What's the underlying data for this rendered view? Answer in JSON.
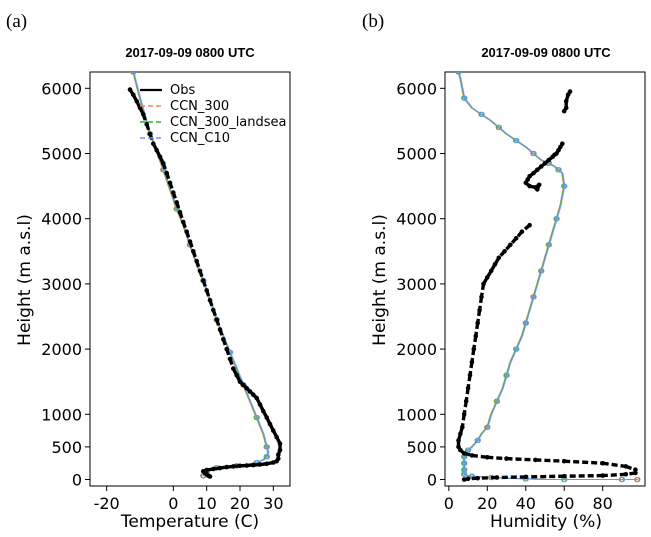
{
  "chart_data": [
    {
      "type": "line",
      "panel_label": "(a)",
      "title": "2017-09-09 0800 UTC",
      "xlabel": "Temperature (C)",
      "ylabel": "Height (m a.s.l)",
      "xlim": [
        -25,
        35
      ],
      "ylim": [
        -100,
        6250
      ],
      "xticks": [
        -20,
        0,
        10,
        20,
        30
      ],
      "yticks": [
        0,
        500,
        1000,
        2000,
        3000,
        4000,
        5000,
        6000
      ],
      "grid": false,
      "legend_position": "top-right",
      "legend": [
        {
          "label": "Obs",
          "color": "#000000",
          "style": "solid"
        },
        {
          "label": "CCN_300",
          "color": "#f08070",
          "style": "dashed"
        },
        {
          "label": "CCN_300_landsea",
          "color": "#22bb22",
          "style": "dashed"
        },
        {
          "label": "CCN_C10",
          "color": "#6699ff",
          "style": "dashed"
        }
      ],
      "series": [
        {
          "name": "Obs",
          "color": "#000000",
          "x": [
            -13,
            -12,
            -11,
            -10,
            -9,
            -8,
            -7,
            -6,
            -5,
            -4,
            -3,
            -2,
            -1,
            0,
            1,
            2,
            3,
            4,
            5,
            6,
            7,
            8,
            9,
            10,
            11,
            12,
            13,
            14,
            15,
            16,
            17,
            18,
            19,
            20,
            21,
            22,
            23,
            24,
            25,
            26,
            27,
            28,
            29,
            30,
            31,
            32,
            32,
            31.5,
            31.5,
            31,
            30,
            28,
            26,
            24,
            22,
            20,
            18,
            16,
            14,
            12,
            10,
            9,
            9.5,
            10,
            10.5,
            11
          ],
          "y": [
            5980,
            5900,
            5800,
            5700,
            5600,
            5450,
            5300,
            5150,
            5050,
            4950,
            4850,
            4700,
            4550,
            4400,
            4250,
            4100,
            3950,
            3800,
            3650,
            3500,
            3350,
            3200,
            3050,
            2900,
            2750,
            2600,
            2450,
            2300,
            2150,
            2000,
            1850,
            1700,
            1600,
            1500,
            1450,
            1400,
            1350,
            1300,
            1250,
            1150,
            1050,
            950,
            850,
            750,
            650,
            550,
            450,
            380,
            320,
            280,
            260,
            240,
            230,
            220,
            215,
            210,
            200,
            190,
            175,
            160,
            145,
            125,
            100,
            80,
            60,
            45
          ]
        },
        {
          "name": "CCN_300",
          "color": "#f08070",
          "x": [
            -12,
            -10,
            -7,
            -5,
            -3,
            -1,
            1,
            3,
            5,
            7,
            9,
            11,
            13,
            15,
            17,
            19,
            21,
            23,
            25,
            27,
            28,
            28.5,
            28,
            27,
            25,
            22,
            19,
            16,
            13,
            11,
            10,
            9.5,
            9
          ],
          "y": [
            6250,
            5850,
            5300,
            5050,
            4750,
            4450,
            4150,
            3900,
            3600,
            3300,
            3050,
            2750,
            2450,
            2200,
            1950,
            1700,
            1450,
            1200,
            950,
            700,
            500,
            420,
            350,
            300,
            260,
            230,
            210,
            195,
            180,
            160,
            120,
            90,
            60
          ]
        },
        {
          "name": "CCN_300_landsea",
          "color": "#22bb22",
          "x": [
            -12,
            -10,
            -7,
            -5,
            -3,
            -1,
            1,
            3,
            5,
            7,
            9,
            11,
            13,
            15,
            17,
            19,
            21,
            23,
            25,
            27,
            28,
            28.5,
            28,
            27,
            25,
            22,
            19,
            16,
            13,
            11,
            10,
            9.5,
            9
          ],
          "y": [
            6250,
            5850,
            5300,
            5050,
            4750,
            4450,
            4150,
            3900,
            3600,
            3300,
            3050,
            2750,
            2450,
            2200,
            1950,
            1700,
            1450,
            1200,
            950,
            700,
            500,
            420,
            350,
            300,
            260,
            230,
            210,
            195,
            180,
            160,
            120,
            90,
            60
          ]
        },
        {
          "name": "CCN_C10",
          "color": "#6699ff",
          "x": [
            -12,
            -10,
            -7,
            -5,
            -3,
            -1,
            1,
            3,
            5,
            7,
            9,
            11,
            13,
            15,
            17,
            19,
            21,
            23,
            25,
            27,
            28,
            28.5,
            28,
            27,
            25,
            22,
            19,
            16,
            13,
            11,
            10,
            9.5,
            9
          ],
          "y": [
            6250,
            5850,
            5300,
            5050,
            4750,
            4450,
            4150,
            3900,
            3600,
            3300,
            3050,
            2750,
            2450,
            2200,
            1950,
            1700,
            1450,
            1200,
            950,
            700,
            500,
            420,
            350,
            300,
            260,
            230,
            210,
            195,
            180,
            160,
            120,
            90,
            60
          ]
        }
      ]
    },
    {
      "type": "line",
      "panel_label": "(b)",
      "title": "2017-09-09 0800 UTC",
      "xlabel": "Humidity (%)",
      "ylabel": "Height (m a.s.l)",
      "xlim": [
        -2,
        102
      ],
      "ylim": [
        -100,
        6250
      ],
      "xticks": [
        0,
        20,
        40,
        60,
        80
      ],
      "yticks": [
        0,
        500,
        1000,
        2000,
        3000,
        4000,
        5000,
        6000
      ],
      "grid": false,
      "series": [
        {
          "name": "Obs",
          "color": "#000000",
          "x": [
            63,
            62,
            61,
            61,
            60,
            59,
            58,
            57,
            56,
            55,
            54,
            52,
            50,
            48,
            46,
            44,
            42,
            41,
            40,
            42,
            45,
            47,
            46,
            42,
            38,
            35,
            32,
            29,
            26,
            24,
            22,
            20,
            18,
            17,
            16,
            15,
            14,
            13,
            12,
            11,
            10,
            9,
            8,
            7,
            6,
            5,
            5,
            6,
            8,
            12,
            20,
            30,
            45,
            60,
            80,
            92,
            97,
            97,
            92,
            80,
            60,
            40,
            25,
            15,
            10,
            8
          ],
          "y": [
            5950,
            5900,
            5800,
            5700,
            5650,
            5150,
            5100,
            5050,
            5000,
            4980,
            4950,
            4900,
            4850,
            4800,
            4750,
            4700,
            4650,
            4600,
            4550,
            4500,
            4480,
            4520,
            4450,
            3900,
            3800,
            3700,
            3600,
            3500,
            3400,
            3300,
            3200,
            3100,
            3000,
            2800,
            2600,
            2400,
            2200,
            2000,
            1800,
            1600,
            1400,
            1200,
            1000,
            800,
            700,
            600,
            500,
            450,
            400,
            370,
            340,
            320,
            300,
            280,
            250,
            200,
            150,
            100,
            80,
            60,
            50,
            40,
            30,
            20,
            10,
            0
          ]
        },
        {
          "name": "CCN_300",
          "color": "#f08070",
          "x": [
            5,
            6,
            8,
            12,
            17,
            22,
            26,
            30,
            35,
            40,
            44,
            48,
            52,
            55,
            57,
            59,
            60,
            58,
            56,
            54,
            52,
            50,
            48,
            46,
            44,
            42,
            40,
            38,
            35,
            32,
            30,
            28,
            25,
            22,
            20,
            17,
            15,
            12,
            10,
            9,
            8,
            8,
            8,
            8,
            8,
            8,
            8,
            9,
            12,
            17,
            22,
            30,
            40,
            50,
            60,
            75,
            90,
            97,
            98
          ],
          "y": [
            6250,
            6150,
            5850,
            5700,
            5600,
            5500,
            5400,
            5300,
            5200,
            5100,
            5000,
            4900,
            4850,
            4800,
            4750,
            4700,
            4500,
            4200,
            4000,
            3800,
            3600,
            3400,
            3200,
            3000,
            2800,
            2600,
            2400,
            2200,
            2000,
            1800,
            1600,
            1400,
            1200,
            1000,
            800,
            700,
            600,
            500,
            450,
            400,
            350,
            300,
            250,
            200,
            150,
            100,
            80,
            60,
            50,
            40,
            30,
            20,
            10,
            0,
            0,
            0,
            0,
            0,
            0
          ]
        },
        {
          "name": "CCN_300_landsea",
          "color": "#22bb22",
          "x": [
            5,
            6,
            8,
            12,
            17,
            22,
            26,
            30,
            35,
            40,
            44,
            48,
            52,
            55,
            57,
            59,
            60,
            58,
            56,
            54,
            52,
            50,
            48,
            46,
            44,
            42,
            40,
            38,
            35,
            32,
            30,
            28,
            25,
            22,
            20,
            17,
            15,
            12,
            10,
            9,
            8,
            8,
            8,
            8,
            8,
            8,
            8,
            9,
            12,
            17,
            22,
            30,
            40,
            50,
            60,
            75,
            90,
            97,
            98
          ],
          "y": [
            6250,
            6150,
            5850,
            5700,
            5600,
            5500,
            5400,
            5300,
            5200,
            5100,
            5000,
            4900,
            4850,
            4800,
            4750,
            4700,
            4500,
            4200,
            4000,
            3800,
            3600,
            3400,
            3200,
            3000,
            2800,
            2600,
            2400,
            2200,
            2000,
            1800,
            1600,
            1400,
            1200,
            1000,
            800,
            700,
            600,
            500,
            450,
            400,
            350,
            300,
            250,
            200,
            150,
            100,
            80,
            60,
            50,
            40,
            30,
            20,
            10,
            0,
            0,
            0,
            0,
            0,
            0
          ]
        },
        {
          "name": "CCN_C10",
          "color": "#6699ff",
          "x": [
            5,
            6,
            8,
            12,
            17,
            22,
            26,
            30,
            35,
            40,
            44,
            48,
            52,
            55,
            57,
            59,
            60,
            58,
            56,
            54,
            52,
            50,
            48,
            46,
            44,
            42,
            40,
            38,
            35,
            32,
            30,
            28,
            25,
            22,
            20,
            17,
            15,
            12,
            10,
            9,
            8,
            8,
            8,
            8,
            8,
            8,
            8,
            9,
            12,
            17,
            22,
            30,
            40,
            50,
            60,
            75,
            90,
            97,
            98
          ],
          "y": [
            6250,
            6150,
            5850,
            5700,
            5600,
            5500,
            5400,
            5300,
            5200,
            5100,
            5000,
            4900,
            4850,
            4800,
            4750,
            4700,
            4500,
            4200,
            4000,
            3800,
            3600,
            3400,
            3200,
            3000,
            2800,
            2600,
            2400,
            2200,
            2000,
            1800,
            1600,
            1400,
            1200,
            1000,
            800,
            700,
            600,
            500,
            450,
            400,
            350,
            300,
            250,
            200,
            150,
            100,
            80,
            60,
            50,
            40,
            30,
            20,
            10,
            0,
            0,
            0,
            0,
            0,
            0
          ]
        }
      ]
    }
  ]
}
